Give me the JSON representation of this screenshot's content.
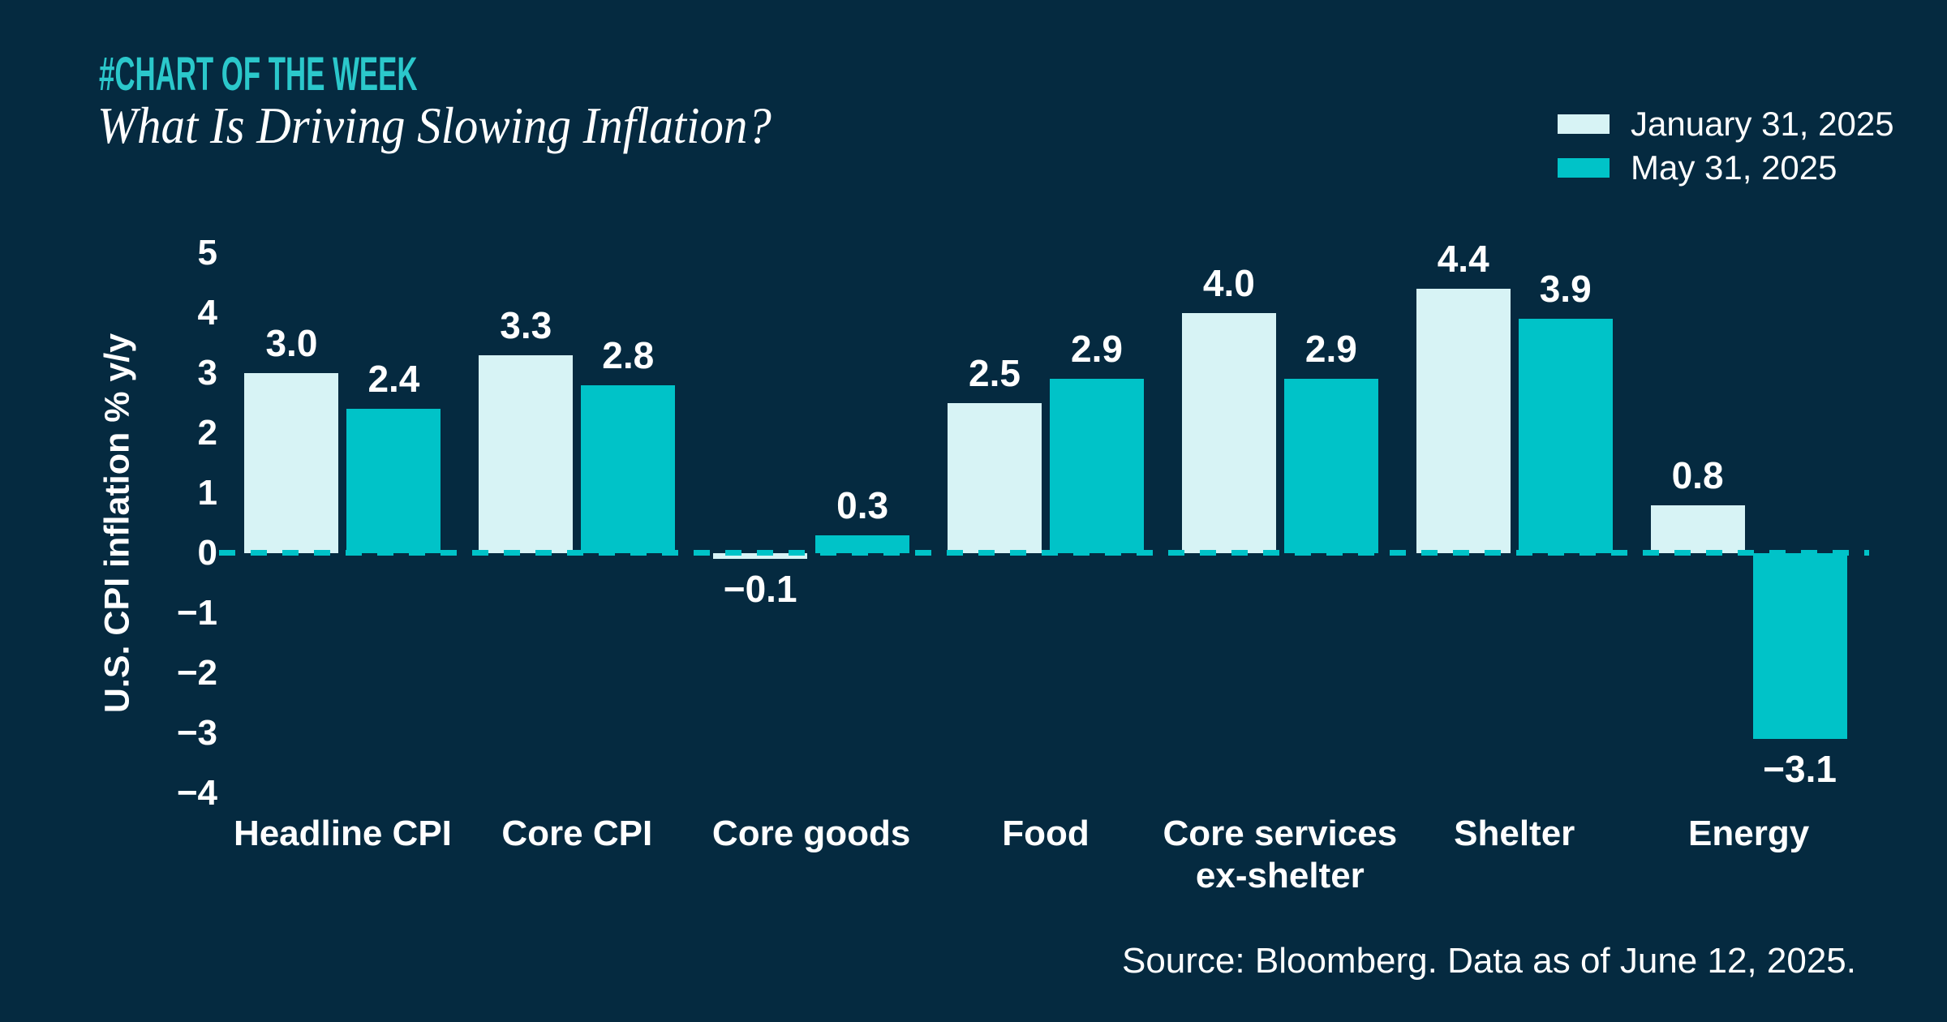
{
  "page": {
    "background": "#052A40"
  },
  "header": {
    "kicker": "#CHART OF THE WEEK",
    "title": "What Is Driving Slowing Inflation?",
    "kicker_color": "#2BC8CB"
  },
  "legend": {
    "items": [
      {
        "label": "January 31, 2025",
        "color": "#D7F3F5"
      },
      {
        "label": "May 31, 2025",
        "color": "#00C3C8"
      }
    ]
  },
  "chart_data": {
    "type": "bar",
    "categories": [
      "Headline CPI",
      "Core CPI",
      "Core goods",
      "Food",
      "Core services ex-shelter",
      "Shelter",
      "Energy"
    ],
    "category_lines": [
      [
        "Headline CPI"
      ],
      [
        "Core CPI"
      ],
      [
        "Core goods"
      ],
      [
        "Food"
      ],
      [
        "Core services",
        "ex-shelter"
      ],
      [
        "Shelter"
      ],
      [
        "Energy"
      ]
    ],
    "series": [
      {
        "name": "January 31, 2025",
        "color": "#D7F3F5",
        "values": [
          3.0,
          3.3,
          -0.1,
          2.5,
          4.0,
          4.4,
          0.8
        ]
      },
      {
        "name": "May 31, 2025",
        "color": "#00C3C8",
        "values": [
          2.4,
          2.8,
          0.3,
          2.9,
          2.9,
          3.9,
          -3.1
        ]
      }
    ],
    "value_labels": [
      [
        "3.0",
        "3.3",
        "−0.1",
        "2.5",
        "4.0",
        "4.4",
        "0.8"
      ],
      [
        "2.4",
        "2.8",
        "0.3",
        "2.9",
        "2.9",
        "3.9",
        "−3.1"
      ]
    ],
    "title": "What Is Driving Slowing Inflation?",
    "xlabel": "",
    "ylabel": "U.S. CPI inflation % y/y",
    "yticks": [
      5,
      4,
      3,
      2,
      1,
      0,
      -1,
      -2,
      -3,
      -4
    ],
    "ylim": [
      -4,
      5
    ],
    "grid": false,
    "legend_position": "top-right",
    "zero_line": {
      "style": "dashed",
      "color": "#00C3C8"
    }
  },
  "footer": {
    "source": "Source: Bloomberg. Data as of June 12, 2025."
  }
}
